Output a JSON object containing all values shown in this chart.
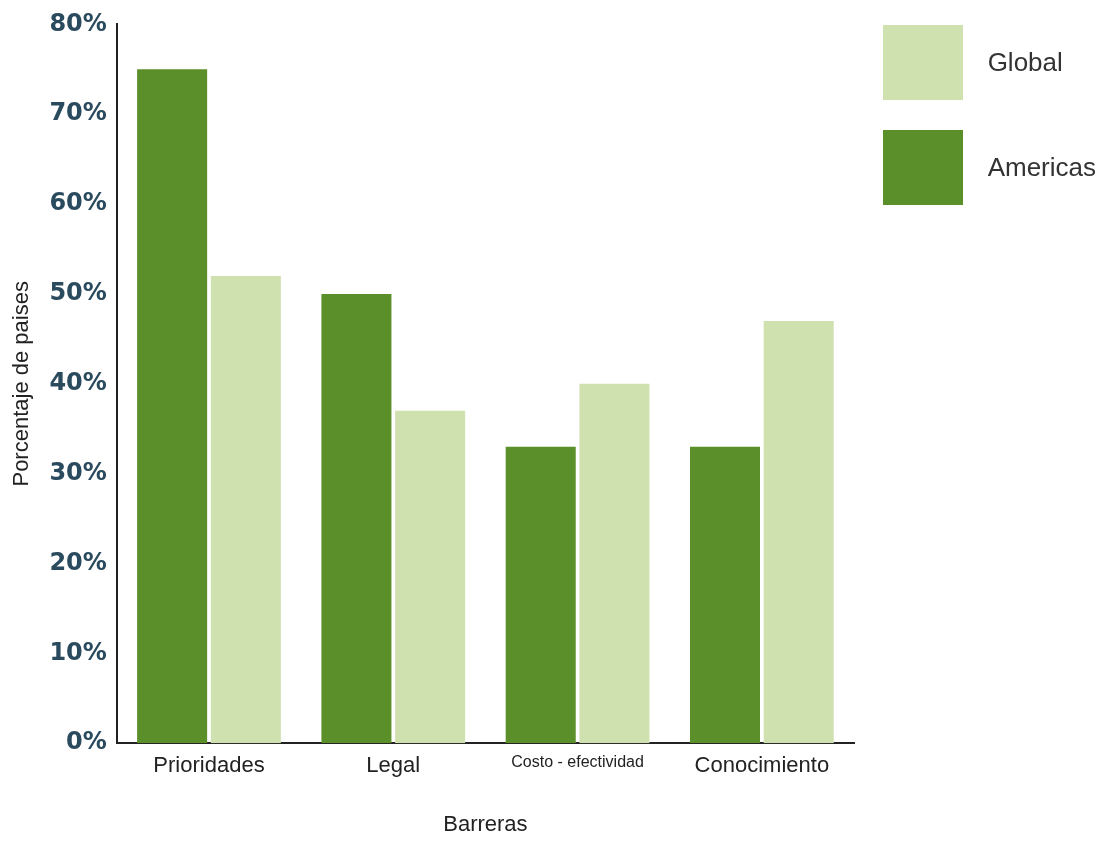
{
  "chart_data": {
    "type": "bar",
    "xlabel": "Barreras",
    "ylabel": "Porcentaje de paises",
    "categories": [
      "Prioridades",
      "Legal",
      "Costo - efectividad",
      "Conocimiento"
    ],
    "series": [
      {
        "name": "Americas",
        "color": "#5a8f29",
        "values": [
          75,
          50,
          33,
          33
        ]
      },
      {
        "name": "Global",
        "color": "#cfe1ae",
        "values": [
          52,
          37,
          40,
          47
        ]
      }
    ],
    "ylim": [
      0,
      80
    ],
    "yticks": [
      {
        "value": 0,
        "label": "0%"
      },
      {
        "value": 10,
        "label": "10%"
      },
      {
        "value": 20,
        "label": "20%"
      },
      {
        "value": 30,
        "label": "30%"
      },
      {
        "value": 40,
        "label": "40%"
      },
      {
        "value": 50,
        "label": "50%"
      },
      {
        "value": 60,
        "label": "60%"
      },
      {
        "value": 70,
        "label": "70%"
      },
      {
        "value": 80,
        "label": "80%"
      }
    ],
    "grid": false,
    "legend": "top right"
  }
}
